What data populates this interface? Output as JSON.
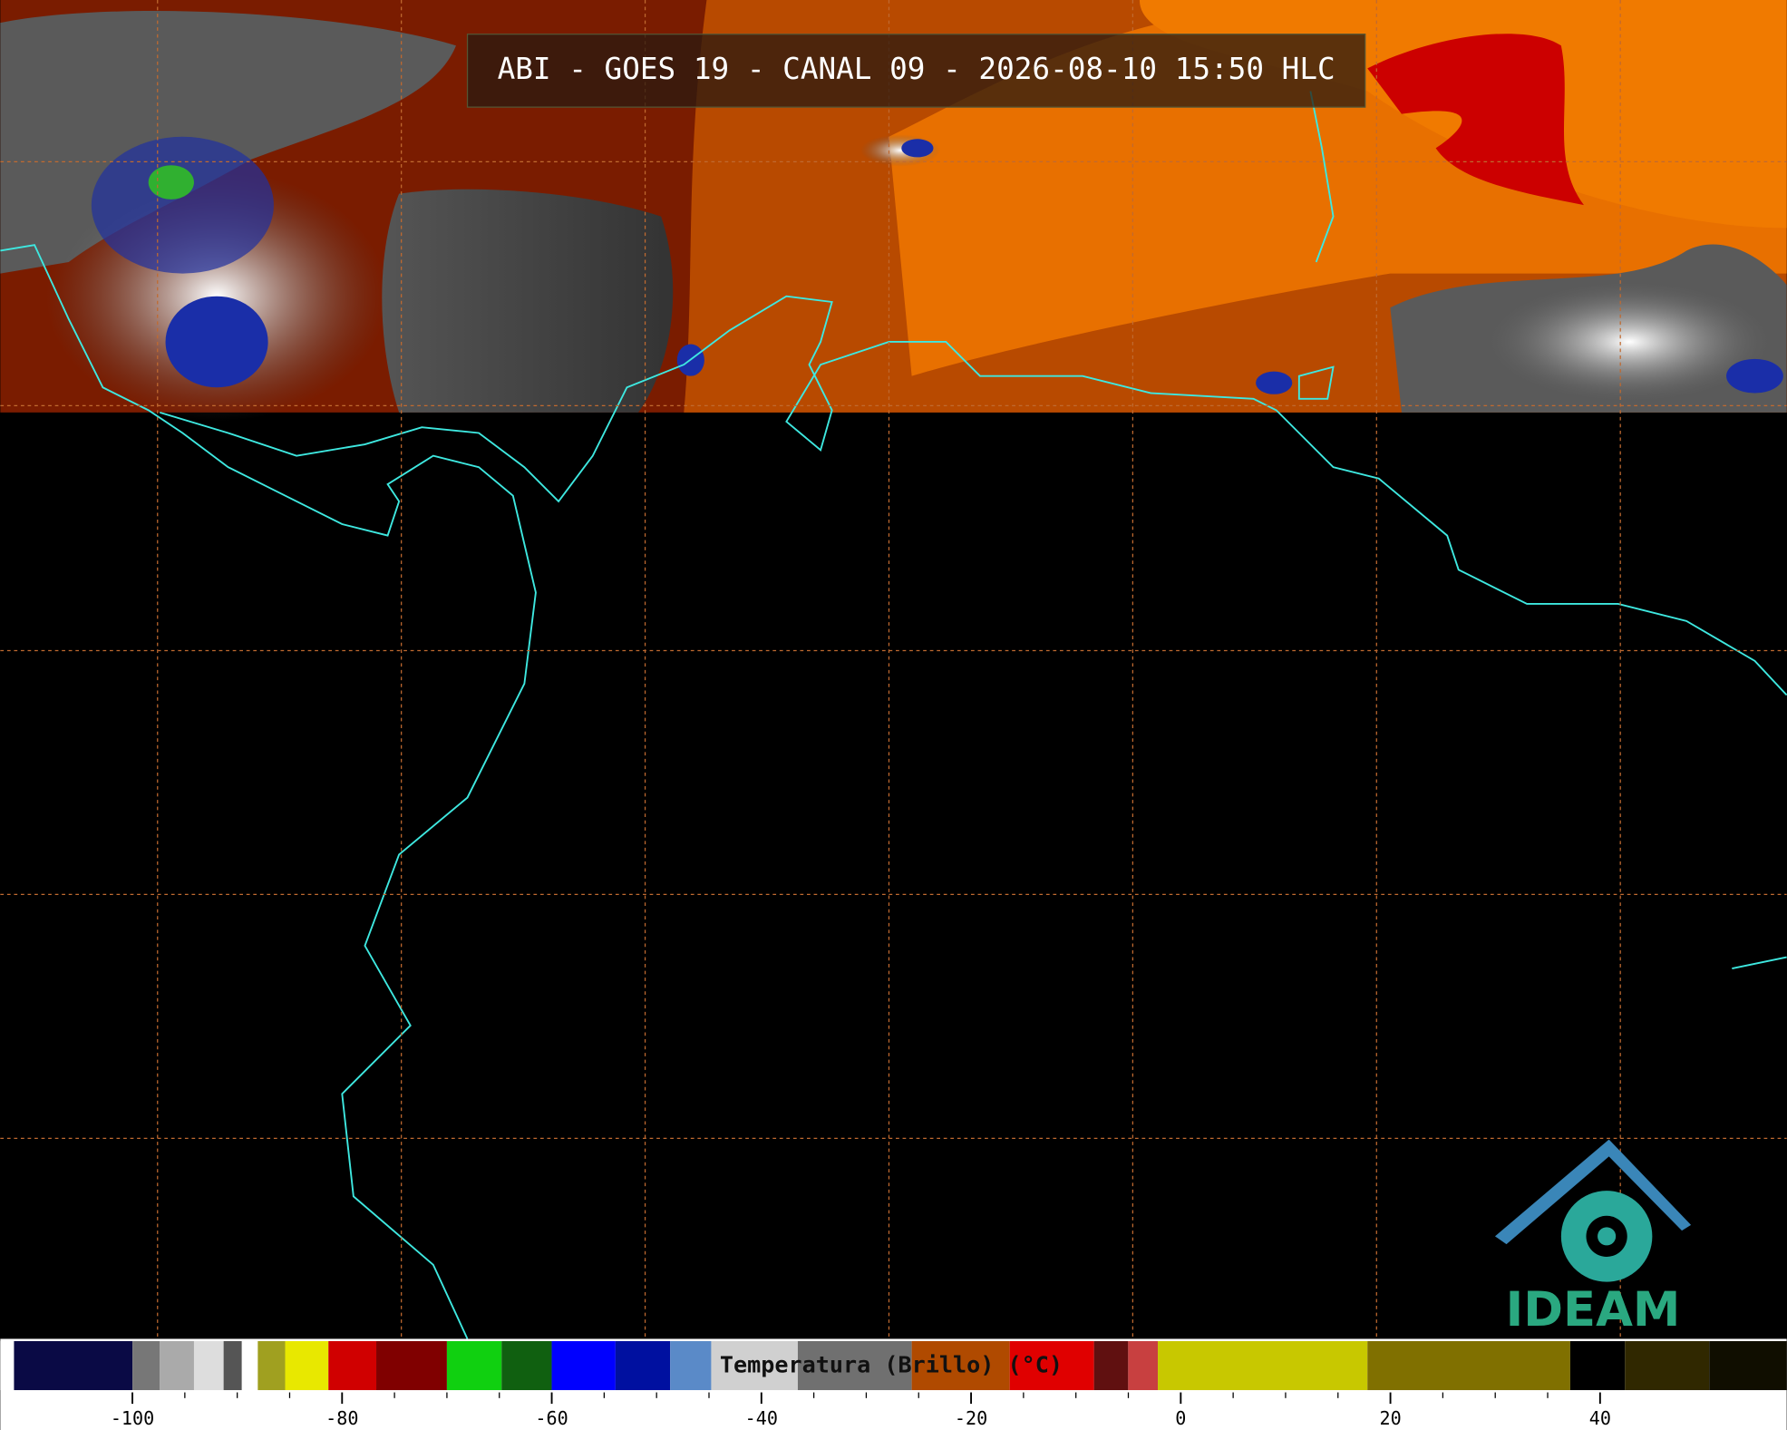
{
  "header": {
    "title": "ABI - GOES 19 - CANAL 09 - 2026-08-10 15:50 HLC"
  },
  "logo": {
    "text": "IDEAM"
  },
  "colorbar": {
    "label": "Temperatura (Brillo) (°C)",
    "range": [
      -112.6,
      57.8
    ],
    "ticks": [
      -100,
      -80,
      -60,
      -40,
      -20,
      0,
      20,
      40
    ]
  }
}
